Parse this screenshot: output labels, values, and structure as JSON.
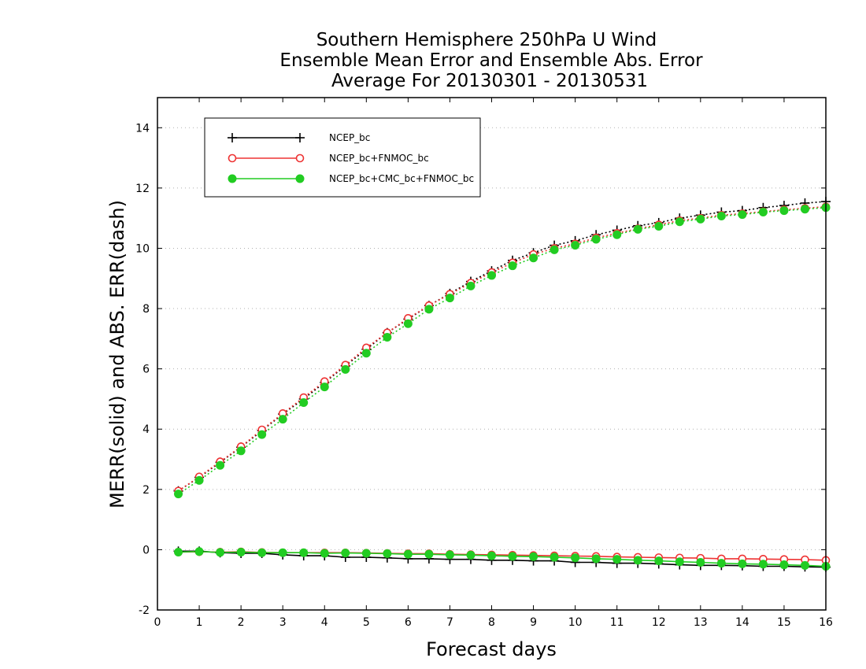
{
  "chart_data": {
    "type": "line",
    "title": [
      "Southern Hemisphere 250hPa U Wind",
      "Ensemble Mean Error and Ensemble Abs. Error",
      "Average For 20130301 - 20130531"
    ],
    "xlabel": "Forecast days",
    "ylabel": "MERR(solid) and ABS. ERR(dash)",
    "xlim": [
      0,
      16
    ],
    "ylim": [
      -2,
      15
    ],
    "xticks": [
      0,
      1,
      2,
      3,
      4,
      5,
      6,
      7,
      8,
      9,
      10,
      11,
      12,
      13,
      14,
      15,
      16
    ],
    "yticks": [
      -2,
      0,
      2,
      4,
      6,
      8,
      10,
      12,
      14
    ],
    "grid": "horizontal dotted",
    "legend_position": "top-left",
    "x": [
      0.5,
      1,
      1.5,
      2,
      2.5,
      3,
      3.5,
      4,
      4.5,
      5,
      5.5,
      6,
      6.5,
      7,
      7.5,
      8,
      8.5,
      9,
      9.5,
      10,
      10.5,
      11,
      11.5,
      12,
      12.5,
      13,
      13.5,
      14,
      14.5,
      15,
      15.5,
      16
    ],
    "series": [
      {
        "name": "NCEP_bc",
        "color": "#000000",
        "marker": "plus",
        "abs_err": [
          1.95,
          2.4,
          2.9,
          3.4,
          3.95,
          4.5,
          5.0,
          5.55,
          6.1,
          6.65,
          7.2,
          7.65,
          8.1,
          8.5,
          8.9,
          9.25,
          9.6,
          9.85,
          10.1,
          10.25,
          10.45,
          10.6,
          10.75,
          10.85,
          11.0,
          11.1,
          11.2,
          11.25,
          11.35,
          11.42,
          11.5,
          11.55
        ],
        "mean_err": [
          -0.05,
          -0.05,
          -0.1,
          -0.12,
          -0.12,
          -0.17,
          -0.2,
          -0.2,
          -0.25,
          -0.25,
          -0.27,
          -0.3,
          -0.3,
          -0.32,
          -0.32,
          -0.35,
          -0.35,
          -0.37,
          -0.37,
          -0.42,
          -0.42,
          -0.45,
          -0.45,
          -0.47,
          -0.5,
          -0.52,
          -0.52,
          -0.53,
          -0.55,
          -0.55,
          -0.57,
          -0.58
        ]
      },
      {
        "name": "NCEP_bc+FNMOC_bc",
        "color": "#ee3333",
        "marker": "open-circle",
        "abs_err": [
          1.95,
          2.42,
          2.92,
          3.42,
          3.98,
          4.52,
          5.05,
          5.58,
          6.13,
          6.7,
          7.2,
          7.68,
          8.1,
          8.48,
          8.85,
          9.2,
          9.52,
          9.8,
          10.0,
          10.15,
          10.35,
          10.5,
          10.65,
          10.78,
          10.92,
          11.0,
          11.1,
          11.15,
          11.22,
          11.28,
          11.33,
          11.38
        ],
        "mean_err": [
          -0.08,
          -0.07,
          -0.08,
          -0.07,
          -0.09,
          -0.1,
          -0.1,
          -0.1,
          -0.1,
          -0.11,
          -0.12,
          -0.13,
          -0.13,
          -0.15,
          -0.16,
          -0.17,
          -0.18,
          -0.19,
          -0.2,
          -0.21,
          -0.22,
          -0.24,
          -0.25,
          -0.26,
          -0.27,
          -0.28,
          -0.3,
          -0.3,
          -0.31,
          -0.32,
          -0.33,
          -0.35
        ]
      },
      {
        "name": "NCEP_bc+CMC_bc+FNMOC_bc",
        "color": "#22cc22",
        "marker": "filled-circle",
        "abs_err": [
          1.85,
          2.3,
          2.8,
          3.28,
          3.82,
          4.33,
          4.88,
          5.4,
          5.98,
          6.52,
          7.05,
          7.5,
          7.98,
          8.35,
          8.75,
          9.1,
          9.42,
          9.68,
          9.95,
          10.1,
          10.3,
          10.45,
          10.63,
          10.73,
          10.88,
          10.97,
          11.07,
          11.12,
          11.2,
          11.25,
          11.3,
          11.35
        ],
        "mean_err": [
          -0.08,
          -0.06,
          -0.09,
          -0.08,
          -0.1,
          -0.1,
          -0.1,
          -0.12,
          -0.11,
          -0.12,
          -0.13,
          -0.15,
          -0.15,
          -0.17,
          -0.18,
          -0.2,
          -0.22,
          -0.23,
          -0.25,
          -0.27,
          -0.3,
          -0.32,
          -0.35,
          -0.37,
          -0.4,
          -0.42,
          -0.45,
          -0.47,
          -0.48,
          -0.5,
          -0.52,
          -0.55
        ]
      }
    ]
  }
}
